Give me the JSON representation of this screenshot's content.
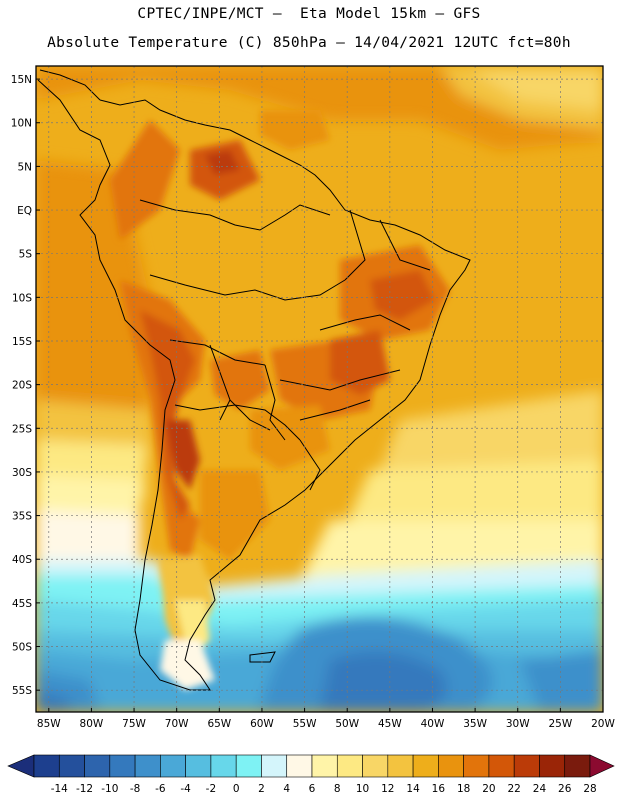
{
  "header": {
    "line1": "CPTEC/INPE/MCT –  Eta Model 15km – GFS",
    "line2": "Absolute Temperature (C) 850hPa – 14/04/2021 12UTC fct=80h"
  },
  "axes": {
    "lat_labels": [
      "15N",
      "10N",
      "5N",
      "EQ",
      "5S",
      "10S",
      "15S",
      "20S",
      "25S",
      "30S",
      "35S",
      "40S",
      "45S",
      "50S",
      "55S"
    ],
    "lat_values": [
      15,
      10,
      5,
      0,
      -5,
      -10,
      -15,
      -20,
      -25,
      -30,
      -35,
      -40,
      -45,
      -50,
      -55
    ],
    "lon_labels": [
      "85W",
      "80W",
      "75W",
      "70W",
      "65W",
      "60W",
      "55W",
      "50W",
      "45W",
      "40W",
      "35W",
      "30W",
      "25W",
      "20W"
    ],
    "lon_values": [
      -85,
      -80,
      -75,
      -70,
      -65,
      -60,
      -55,
      -50,
      -45,
      -40,
      -35,
      -30,
      -25,
      -20
    ],
    "lat_range": [
      -57.5,
      16.5
    ],
    "lon_range": [
      -86.5,
      -20
    ]
  },
  "colorbar": {
    "labels": [
      "-14",
      "-12",
      "-10",
      "-8",
      "-6",
      "-4",
      "-2",
      "0",
      "2",
      "4",
      "6",
      "8",
      "10",
      "12",
      "14",
      "16",
      "18",
      "20",
      "22",
      "24",
      "26",
      "28"
    ],
    "colors": [
      "#1d3f8e",
      "#24509c",
      "#2d64ad",
      "#3479bd",
      "#3e90cb",
      "#4aa8d7",
      "#56bee0",
      "#67d7ea",
      "#7ef2f4",
      "#d4f5fb",
      "#fff8e6",
      "#fff4a8",
      "#fde983",
      "#f8d666",
      "#f3c33f",
      "#eeae1b",
      "#e9930e",
      "#e2740b",
      "#d35708",
      "#bb3b08",
      "#9a2507",
      "#7a1b0d"
    ],
    "low_arrow_color": "#1b2e7a",
    "high_arrow_color": "#8b0a30"
  }
}
